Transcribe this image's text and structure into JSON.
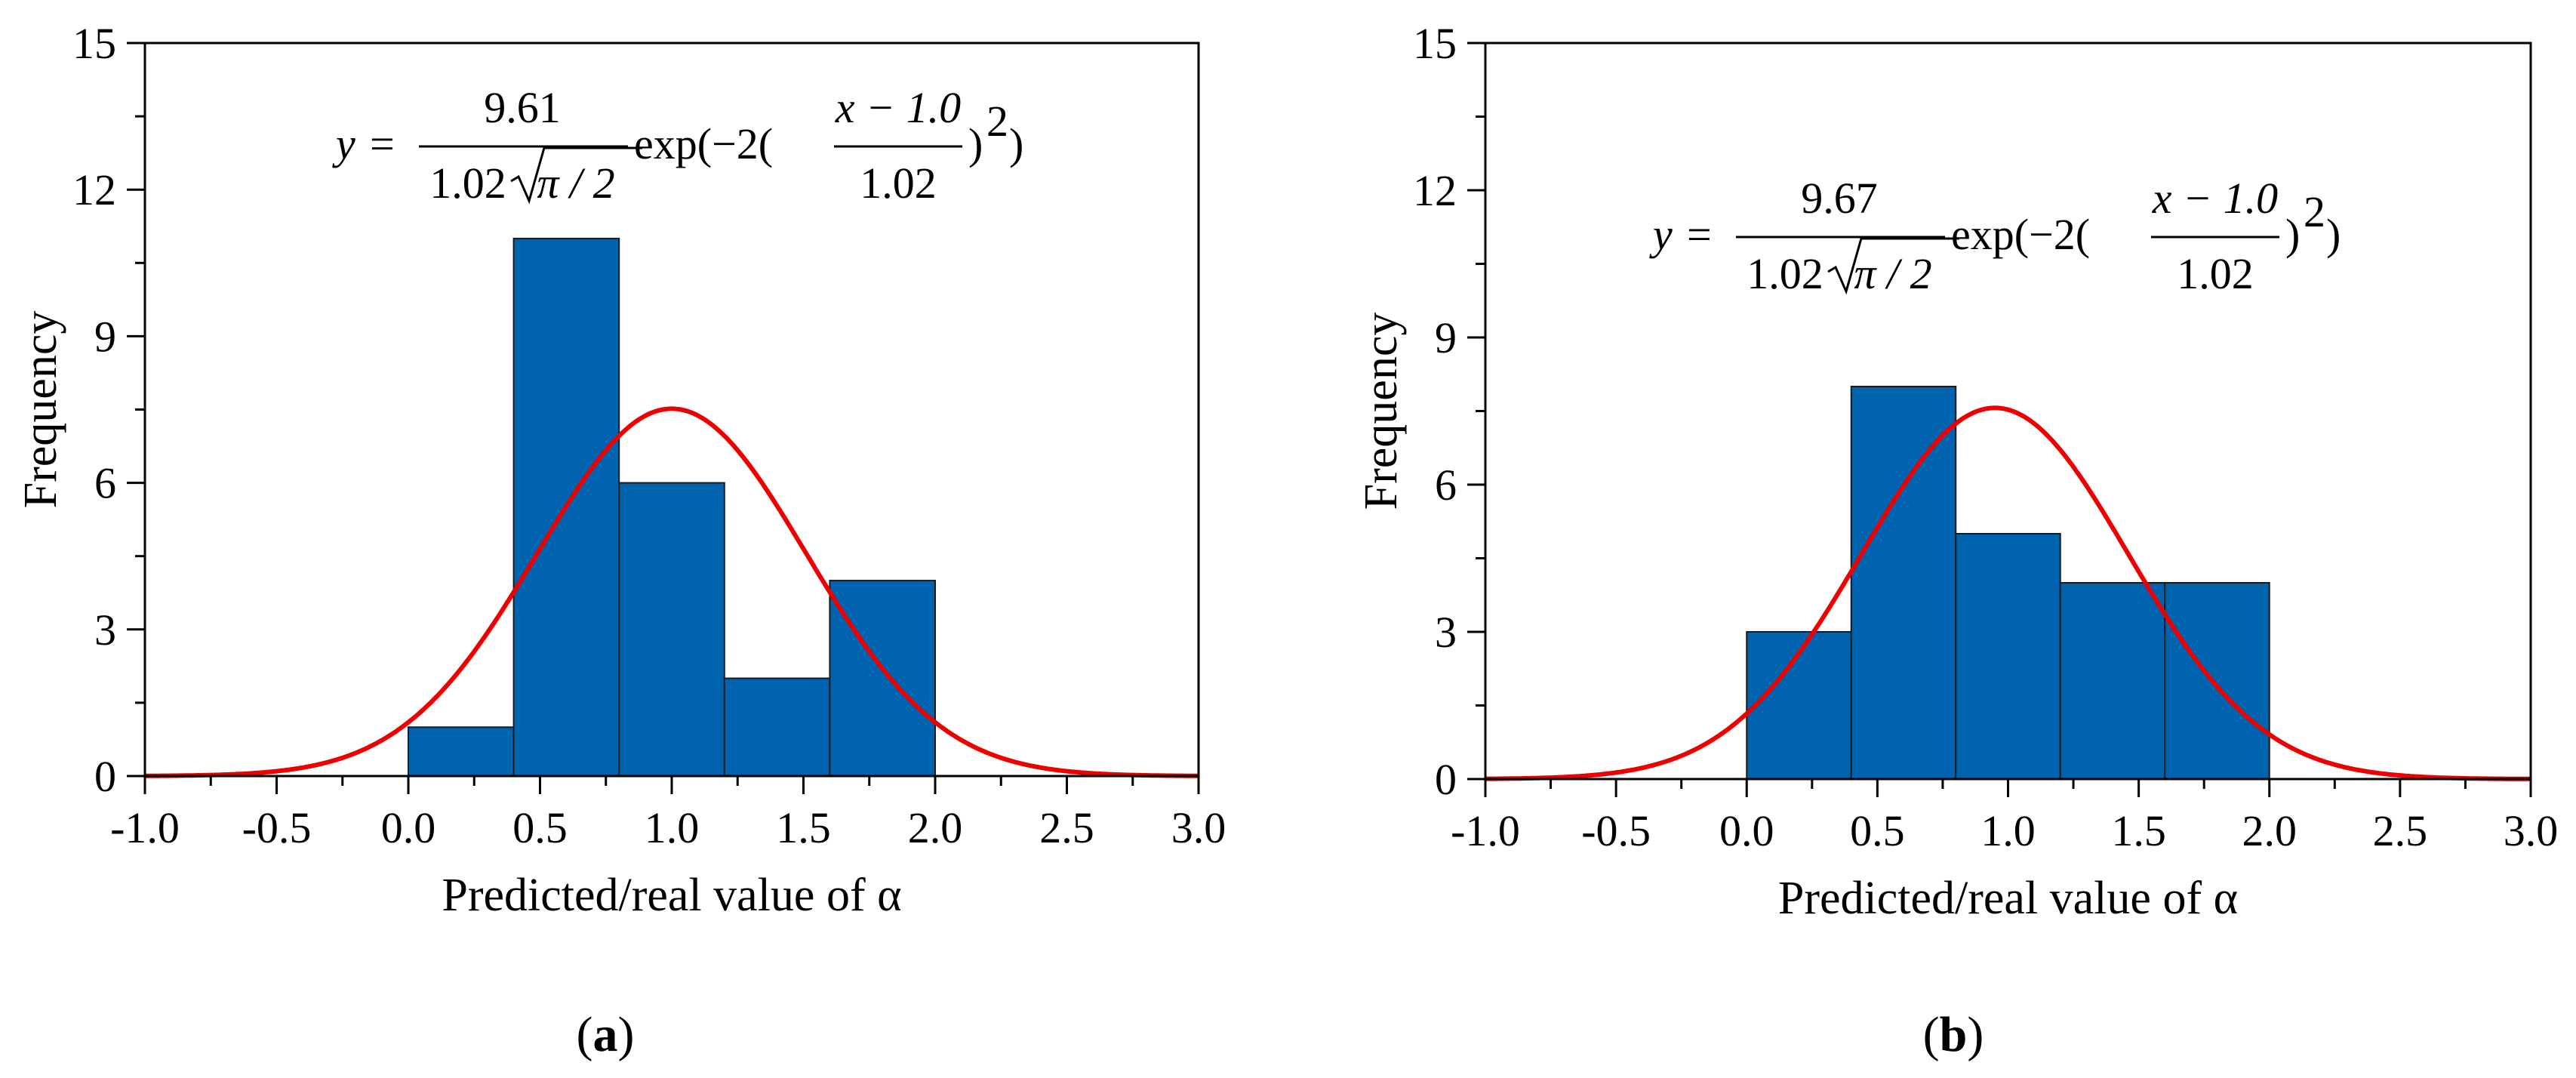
{
  "figure": {
    "panel_labels": [
      "(a)",
      "(b)"
    ]
  },
  "chart_data": [
    {
      "type": "bar",
      "panel": "a",
      "panel_label": "(a)",
      "panel_letter": "a",
      "xlabel": "Predicted/real value of α",
      "ylabel": "Frequency",
      "xlim": [
        -1.0,
        3.0
      ],
      "ylim": [
        0,
        15
      ],
      "xticks": [
        "-1.0",
        "-0.5",
        "0.0",
        "0.5",
        "1.0",
        "1.5",
        "2.0",
        "2.5",
        "3.0"
      ],
      "yticks": [
        "0",
        "3",
        "6",
        "9",
        "12",
        "15"
      ],
      "bins": [
        [
          0.0,
          0.4
        ],
        [
          0.4,
          0.8
        ],
        [
          0.8,
          1.2
        ],
        [
          1.2,
          1.6
        ],
        [
          1.6,
          2.0
        ]
      ],
      "values": [
        1,
        11,
        6,
        2,
        4
      ],
      "fit": {
        "amplitude": 9.61,
        "mean": 1.0,
        "width": 1.02,
        "peak_label_free": true
      },
      "equation": {
        "lhs": "y",
        "equals": "=",
        "numerator": "9.61",
        "denominator_coef": "1.02",
        "denominator_sqrt": "π / 2",
        "exp": "exp(−2(",
        "frac_num": "x − 1.0",
        "frac_den": "1.02",
        "close": ")",
        "power": "2",
        "tail": ")"
      },
      "colors": {
        "bar": "#0063b0",
        "curve": "#ee0000"
      }
    },
    {
      "type": "bar",
      "panel": "b",
      "panel_label": "(b)",
      "panel_letter": "b",
      "xlabel": "Predicted/real value of α",
      "ylabel": "Frequency",
      "xlim": [
        -1.0,
        3.0
      ],
      "ylim": [
        0,
        15
      ],
      "xticks": [
        "-1.0",
        "-0.5",
        "0.0",
        "0.5",
        "1.0",
        "1.5",
        "2.0",
        "2.5",
        "3.0"
      ],
      "yticks": [
        "0",
        "3",
        "6",
        "9",
        "12",
        "15"
      ],
      "bins": [
        [
          0.0,
          0.4
        ],
        [
          0.4,
          0.8
        ],
        [
          0.8,
          1.2
        ],
        [
          1.2,
          1.6
        ],
        [
          1.6,
          2.0
        ]
      ],
      "values": [
        3,
        8,
        5,
        4,
        4
      ],
      "fit": {
        "amplitude": 9.67,
        "mean": 0.95,
        "width": 1.02
      },
      "equation": {
        "lhs": "y",
        "equals": "=",
        "numerator": "9.67",
        "denominator_coef": "1.02",
        "denominator_sqrt": "π / 2",
        "exp": "exp(−2(",
        "frac_num": "x − 1.0",
        "frac_den": "1.02",
        "close": ")",
        "power": "2",
        "tail": ")"
      },
      "colors": {
        "bar": "#0063b0",
        "curve": "#ee0000"
      }
    }
  ]
}
